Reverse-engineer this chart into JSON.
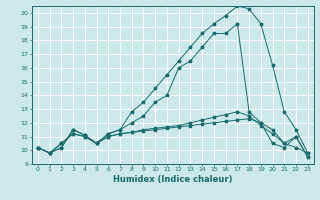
{
  "xlabel": "Humidex (Indice chaleur)",
  "background_color": "#cce8e8",
  "grid_color": "#ffffff",
  "line_color": "#1a6b6b",
  "xlim": [
    -0.5,
    23.5
  ],
  "ylim": [
    9,
    20.5
  ],
  "yticks": [
    9,
    10,
    11,
    12,
    13,
    14,
    15,
    16,
    17,
    18,
    19,
    20
  ],
  "xticks": [
    0,
    1,
    2,
    3,
    4,
    5,
    6,
    7,
    8,
    9,
    10,
    11,
    12,
    13,
    14,
    15,
    16,
    17,
    18,
    19,
    20,
    21,
    22,
    23
  ],
  "series": [
    [
      10.2,
      9.8,
      10.2,
      11.5,
      11.1,
      10.5,
      11.0,
      11.2,
      11.3,
      11.4,
      11.5,
      11.6,
      11.7,
      11.8,
      11.9,
      12.0,
      12.1,
      12.2,
      12.3,
      12.0,
      11.5,
      10.5,
      10.2,
      9.8
    ],
    [
      10.2,
      9.8,
      10.2,
      11.5,
      11.1,
      10.5,
      11.0,
      11.2,
      11.3,
      11.5,
      11.6,
      11.7,
      11.8,
      12.0,
      12.2,
      12.4,
      12.6,
      12.8,
      12.5,
      11.8,
      11.2,
      10.5,
      11.0,
      9.5
    ],
    [
      10.2,
      9.8,
      10.5,
      11.2,
      11.0,
      10.5,
      11.2,
      11.5,
      12.0,
      12.5,
      13.5,
      14.0,
      16.0,
      16.5,
      17.5,
      18.5,
      18.5,
      19.2,
      12.8,
      12.0,
      10.5,
      10.2,
      11.0,
      9.5
    ],
    [
      10.2,
      9.8,
      10.5,
      11.2,
      11.0,
      10.5,
      11.2,
      11.5,
      12.8,
      13.5,
      14.5,
      15.5,
      16.5,
      17.5,
      18.5,
      19.2,
      19.8,
      20.5,
      20.3,
      19.2,
      16.2,
      12.8,
      11.5,
      9.8
    ]
  ]
}
